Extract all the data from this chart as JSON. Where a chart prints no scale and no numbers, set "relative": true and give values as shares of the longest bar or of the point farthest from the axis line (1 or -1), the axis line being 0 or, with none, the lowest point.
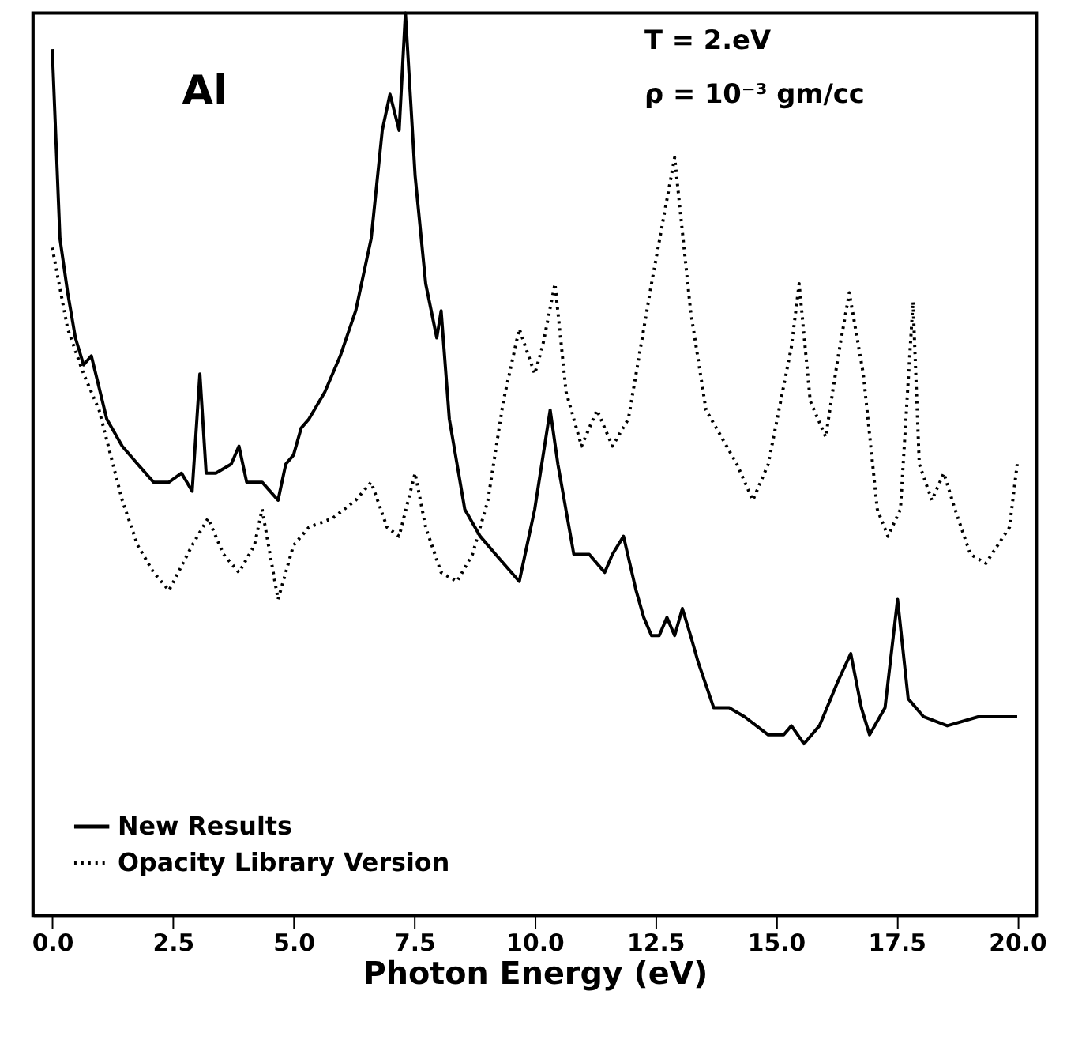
{
  "chart_data": {
    "type": "line",
    "xlabel": "Photon Energy (eV)",
    "relative": true,
    "tick_labels": "x",
    "grid": false,
    "legend": "bottom left",
    "xlim": [
      -0.4,
      20.4
    ],
    "xticks": [
      {
        "value": 0,
        "label": "0.0"
      },
      {
        "value": 2.5,
        "label": "2.5"
      },
      {
        "value": 5,
        "label": "5.0"
      },
      {
        "value": 7.5,
        "label": "7.5"
      },
      {
        "value": 10,
        "label": "10.0"
      },
      {
        "value": 12.5,
        "label": "12.5"
      },
      {
        "value": 15,
        "label": "15.0"
      },
      {
        "value": 17.5,
        "label": "17.5"
      },
      {
        "value": 20,
        "label": "20.0"
      }
    ],
    "annotations": [
      "Al",
      "T = 2.eV",
      "ρ = 10⁻³ gm/cc"
    ],
    "series": [
      {
        "name": "New Results",
        "color": "#000000",
        "line_style": "solid",
        "x": [
          0.0,
          0.16,
          0.32,
          0.48,
          0.65,
          0.81,
          1.13,
          1.45,
          1.77,
          2.1,
          2.42,
          2.68,
          2.9,
          3.06,
          3.19,
          3.39,
          3.71,
          3.87,
          4.03,
          4.35,
          4.68,
          4.84,
          5.0,
          5.16,
          5.32,
          5.65,
          5.97,
          6.29,
          6.61,
          6.84,
          7.0,
          7.19,
          7.32,
          7.52,
          7.74,
          7.97,
          8.06,
          8.23,
          8.55,
          8.87,
          9.19,
          9.68,
          10.0,
          10.32,
          10.48,
          10.81,
          11.13,
          11.45,
          11.61,
          11.84,
          12.1,
          12.26,
          12.42,
          12.58,
          12.74,
          12.9,
          13.06,
          13.23,
          13.39,
          13.71,
          14.03,
          14.35,
          14.84,
          15.16,
          15.32,
          15.58,
          15.9,
          16.29,
          16.55,
          16.77,
          16.94,
          17.26,
          17.52,
          17.74,
          18.06,
          18.55,
          19.19,
          20.0
        ],
        "values": [
          0.96,
          0.75,
          0.69,
          0.64,
          0.61,
          0.62,
          0.55,
          0.52,
          0.5,
          0.48,
          0.48,
          0.49,
          0.47,
          0.6,
          0.49,
          0.49,
          0.5,
          0.52,
          0.48,
          0.48,
          0.46,
          0.5,
          0.51,
          0.54,
          0.55,
          0.58,
          0.62,
          0.67,
          0.75,
          0.87,
          0.91,
          0.87,
          1.0,
          0.82,
          0.7,
          0.64,
          0.67,
          0.55,
          0.45,
          0.42,
          0.4,
          0.37,
          0.45,
          0.56,
          0.5,
          0.4,
          0.4,
          0.38,
          0.4,
          0.42,
          0.36,
          0.33,
          0.31,
          0.31,
          0.33,
          0.31,
          0.34,
          0.31,
          0.28,
          0.23,
          0.23,
          0.22,
          0.2,
          0.2,
          0.21,
          0.19,
          0.21,
          0.26,
          0.29,
          0.23,
          0.2,
          0.23,
          0.35,
          0.24,
          0.22,
          0.21,
          0.22,
          0.22
        ]
      },
      {
        "name": "Opacity Library Version",
        "color": "#000000",
        "line_style": "dotted",
        "x": [
          0.0,
          0.32,
          0.65,
          0.97,
          1.45,
          1.77,
          2.1,
          2.42,
          2.9,
          3.23,
          3.55,
          3.87,
          4.19,
          4.35,
          4.68,
          5.0,
          5.32,
          5.81,
          6.29,
          6.61,
          6.94,
          7.19,
          7.52,
          7.74,
          8.06,
          8.39,
          8.71,
          9.03,
          9.35,
          9.68,
          10.0,
          10.16,
          10.42,
          10.65,
          10.97,
          11.29,
          11.61,
          11.94,
          12.42,
          12.9,
          13.23,
          13.55,
          13.87,
          14.19,
          14.52,
          14.84,
          15.32,
          15.48,
          15.71,
          16.03,
          16.29,
          16.52,
          16.81,
          17.1,
          17.32,
          17.58,
          17.84,
          17.97,
          18.23,
          18.48,
          18.71,
          19.03,
          19.35,
          19.84,
          20.0
        ],
        "values": [
          0.74,
          0.65,
          0.6,
          0.56,
          0.46,
          0.41,
          0.38,
          0.36,
          0.41,
          0.44,
          0.4,
          0.38,
          0.41,
          0.45,
          0.35,
          0.41,
          0.43,
          0.44,
          0.46,
          0.48,
          0.43,
          0.42,
          0.49,
          0.43,
          0.38,
          0.37,
          0.4,
          0.46,
          0.57,
          0.65,
          0.6,
          0.63,
          0.7,
          0.58,
          0.52,
          0.56,
          0.52,
          0.55,
          0.7,
          0.84,
          0.67,
          0.56,
          0.53,
          0.5,
          0.46,
          0.5,
          0.63,
          0.7,
          0.57,
          0.53,
          0.62,
          0.69,
          0.6,
          0.45,
          0.42,
          0.45,
          0.68,
          0.5,
          0.46,
          0.49,
          0.45,
          0.4,
          0.39,
          0.43,
          0.5
        ]
      }
    ]
  }
}
